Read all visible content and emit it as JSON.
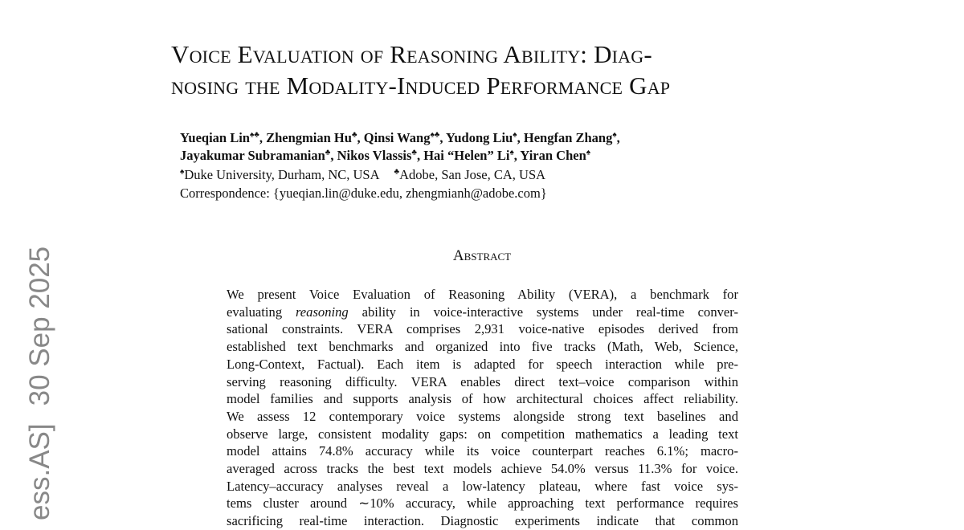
{
  "sidebar": {
    "parts": [
      "ess.AS]",
      "30 Sep 2025"
    ]
  },
  "title": {
    "lines": [
      "Voice Evaluation of Reasoning Ability: Diag-",
      "nosing the Modality-Induced Performance Gap"
    ]
  },
  "authors": {
    "separator": ",",
    "rows": [
      [
        {
          "name": "Yueqian Lin",
          "marks": "♠♣"
        },
        {
          "name": "Zhengmian Hu",
          "marks": "♣"
        },
        {
          "name": "Qinsi Wang",
          "marks": "♠♣"
        },
        {
          "name": "Yudong Liu",
          "marks": "♠"
        },
        {
          "name": "Hengfan Zhang",
          "marks": "♠"
        }
      ],
      [
        {
          "name": "Jayakumar Subramanian",
          "marks": "♣"
        },
        {
          "name": "Nikos Vlassis",
          "marks": "♣"
        },
        {
          "name": "Hai “Helen” Li",
          "marks": "♠"
        },
        {
          "name": "Yiran Chen",
          "marks": "♠"
        }
      ]
    ]
  },
  "affiliations": [
    {
      "mark": "♠",
      "text": "Duke University, Durham, NC, USA"
    },
    {
      "mark": "♣",
      "text": "Adobe, San Jose, CA, USA"
    }
  ],
  "correspondence": "Correspondence: {yueqian.lin@duke.edu, zhengmianh@adobe.com}",
  "abstract": {
    "heading": "Abstract",
    "lines": [
      [
        "We present Voice Evaluation of Reasoning Ability (VERA), a benchmark for"
      ],
      [
        "evaluating ",
        "reasoning",
        " ability in voice-interactive systems under real-time conver-"
      ],
      [
        "sational constraints. VERA comprises 2,931 voice-native episodes derived from"
      ],
      [
        "established text benchmarks and organized into five tracks (Math, Web, Science,"
      ],
      [
        "Long-Context, Factual). Each item is adapted for speech interaction while pre-"
      ],
      [
        "serving reasoning difficulty. VERA enables direct text–voice comparison within"
      ],
      [
        "model families and supports analysis of how architectural choices affect reliability."
      ],
      [
        "We assess 12 contemporary voice systems alongside strong text baselines and"
      ],
      [
        "observe large, consistent modality gaps: on competition mathematics a leading text"
      ],
      [
        "model attains 74.8% accuracy while its voice counterpart reaches 6.1%; macro-"
      ],
      [
        "averaged across tracks the best text models achieve 54.0% versus 11.3% for voice."
      ],
      [
        "Latency–accuracy analyses reveal a low-latency plateau, where fast voice sys-"
      ],
      [
        "tems cluster around ∼10% accuracy, while approaching text performance requires"
      ],
      [
        "sacrificing real-time interaction. Diagnostic experiments indicate that common"
      ]
    ]
  }
}
